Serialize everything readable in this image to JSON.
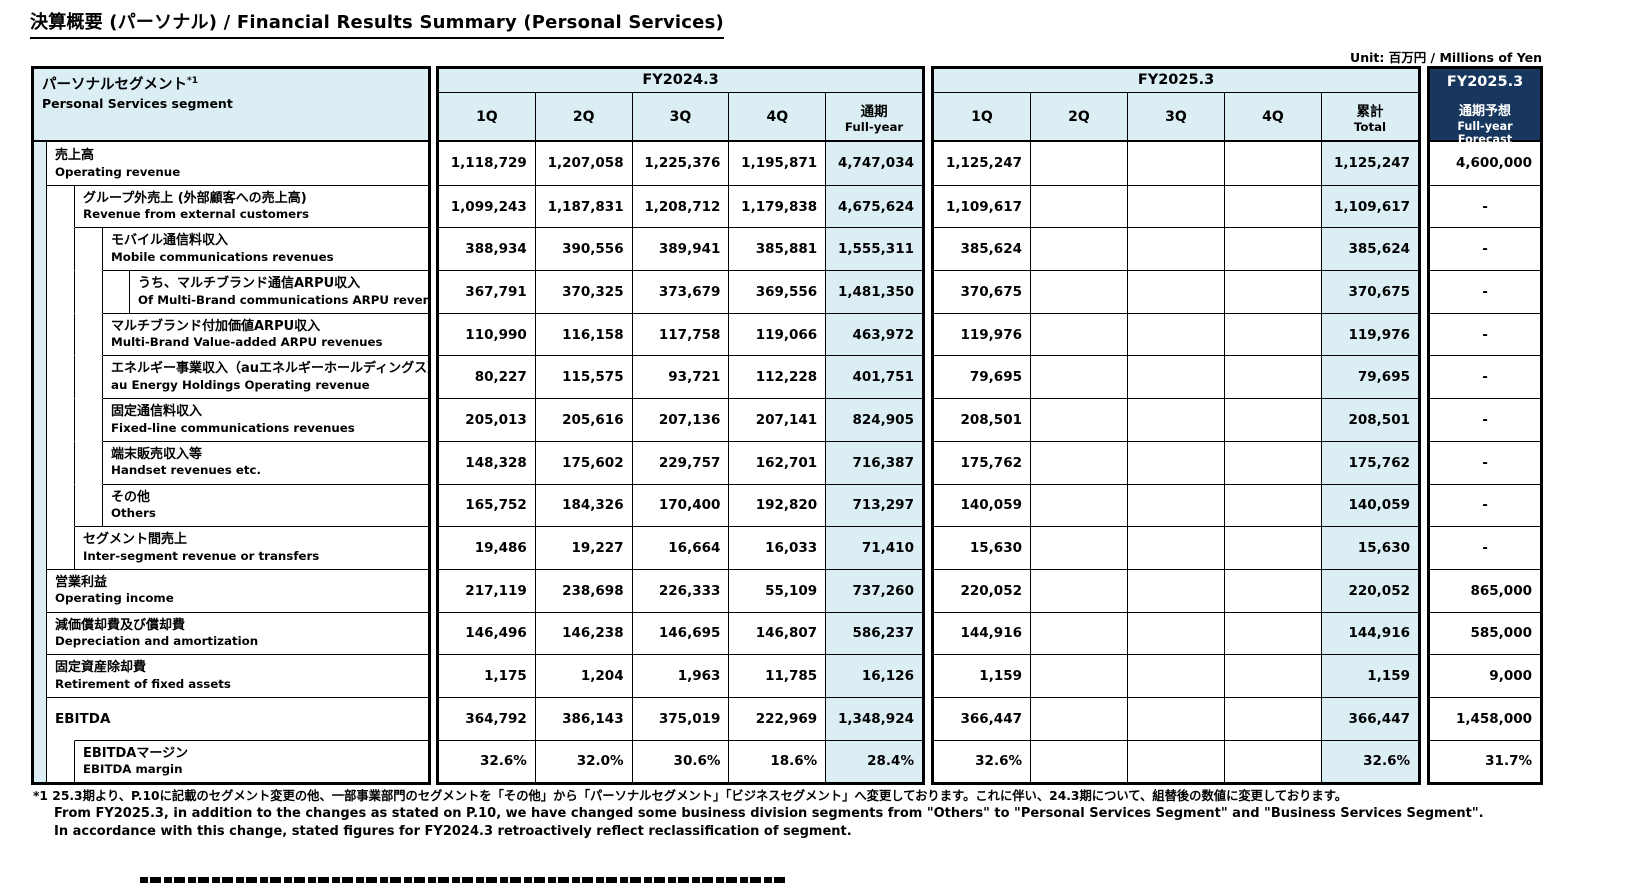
{
  "title": "決算概要 (パーソナル) / Financial Results Summary (Personal Services)",
  "unit_note": "Unit: 百万円 / Millions of Yen",
  "colors": {
    "header_blue": "#DAEEF3",
    "forecast_navy": "#17375E",
    "border": "#000000"
  },
  "segment": {
    "ja": "パーソナルセグメント",
    "sup": "*1",
    "en": "Personal Services segment"
  },
  "columns": {
    "fy2024": {
      "title": "FY2024.3",
      "q1": "1Q",
      "q2": "2Q",
      "q3": "3Q",
      "q4": "4Q",
      "total_ja": "通期",
      "total_en": "Full-year"
    },
    "fy2025": {
      "title": "FY2025.3",
      "q1": "1Q",
      "q2": "2Q",
      "q3": "3Q",
      "q4": "4Q",
      "total_ja": "累計",
      "total_en": "Total"
    },
    "forecast": {
      "title": "FY2025.3",
      "label_ja": "通期予想",
      "label_en": "Full-year Forecast"
    }
  },
  "rows": [
    {
      "ja": "売上高",
      "en": "Operating revenue",
      "indent": 0,
      "fy2024": [
        "1,118,729",
        "1,207,058",
        "1,225,376",
        "1,195,871",
        "4,747,034"
      ],
      "fy2025": [
        "1,125,247",
        "",
        "",
        "",
        "1,125,247"
      ],
      "forecast": "4,600,000"
    },
    {
      "ja": "グループ外売上 (外部顧客への売上高)",
      "en": "Revenue from external customers",
      "indent": 1,
      "fy2024": [
        "1,099,243",
        "1,187,831",
        "1,208,712",
        "1,179,838",
        "4,675,624"
      ],
      "fy2025": [
        "1,109,617",
        "",
        "",
        "",
        "1,109,617"
      ],
      "forecast": "-"
    },
    {
      "ja": "モバイル通信料収入",
      "en": "Mobile communications revenues",
      "indent": 2,
      "fy2024": [
        "388,934",
        "390,556",
        "389,941",
        "385,881",
        "1,555,311"
      ],
      "fy2025": [
        "385,624",
        "",
        "",
        "",
        "385,624"
      ],
      "forecast": "-"
    },
    {
      "ja": "うち、マルチブランド通信ARPU収入",
      "en": "Of Multi-Brand communications ARPU revenues",
      "indent": 3,
      "fy2024": [
        "367,791",
        "370,325",
        "373,679",
        "369,556",
        "1,481,350"
      ],
      "fy2025": [
        "370,675",
        "",
        "",
        "",
        "370,675"
      ],
      "forecast": "-"
    },
    {
      "ja": "マルチブランド付加価値ARPU収入",
      "en": "Multi-Brand Value-added ARPU revenues",
      "indent": 2,
      "fy2024": [
        "110,990",
        "116,158",
        "117,758",
        "119,066",
        "463,972"
      ],
      "fy2025": [
        "119,976",
        "",
        "",
        "",
        "119,976"
      ],
      "forecast": "-"
    },
    {
      "ja": "エネルギー事業収入（auエネルギーホールディングス）",
      "en": "au Energy Holdings Operating revenue",
      "indent": 2,
      "fy2024": [
        "80,227",
        "115,575",
        "93,721",
        "112,228",
        "401,751"
      ],
      "fy2025": [
        "79,695",
        "",
        "",
        "",
        "79,695"
      ],
      "forecast": "-"
    },
    {
      "ja": "固定通信料収入",
      "en": "Fixed-line communications revenues",
      "indent": 2,
      "fy2024": [
        "205,013",
        "205,616",
        "207,136",
        "207,141",
        "824,905"
      ],
      "fy2025": [
        "208,501",
        "",
        "",
        "",
        "208,501"
      ],
      "forecast": "-"
    },
    {
      "ja": "端末販売収入等",
      "en": "Handset revenues etc.",
      "indent": 2,
      "fy2024": [
        "148,328",
        "175,602",
        "229,757",
        "162,701",
        "716,387"
      ],
      "fy2025": [
        "175,762",
        "",
        "",
        "",
        "175,762"
      ],
      "forecast": "-"
    },
    {
      "ja": "その他",
      "en": "Others",
      "indent": 2,
      "fy2024": [
        "165,752",
        "184,326",
        "170,400",
        "192,820",
        "713,297"
      ],
      "fy2025": [
        "140,059",
        "",
        "",
        "",
        "140,059"
      ],
      "forecast": "-"
    },
    {
      "ja": "セグメント間売上",
      "en": "Inter-segment revenue or transfers",
      "indent": 1,
      "fy2024": [
        "19,486",
        "19,227",
        "16,664",
        "16,033",
        "71,410"
      ],
      "fy2025": [
        "15,630",
        "",
        "",
        "",
        "15,630"
      ],
      "forecast": "-"
    },
    {
      "ja": "営業利益",
      "en": "Operating income",
      "indent": 0,
      "fy2024": [
        "217,119",
        "238,698",
        "226,333",
        "55,109",
        "737,260"
      ],
      "fy2025": [
        "220,052",
        "",
        "",
        "",
        "220,052"
      ],
      "forecast": "865,000"
    },
    {
      "ja": "減価償却費及び償却費",
      "en": "Depreciation and amortization",
      "indent": 0,
      "fy2024": [
        "146,496",
        "146,238",
        "146,695",
        "146,807",
        "586,237"
      ],
      "fy2025": [
        "144,916",
        "",
        "",
        "",
        "144,916"
      ],
      "forecast": "585,000"
    },
    {
      "ja": "固定資産除却費",
      "en": "Retirement of fixed assets",
      "indent": 0,
      "fy2024": [
        "1,175",
        "1,204",
        "1,963",
        "11,785",
        "16,126"
      ],
      "fy2025": [
        "1,159",
        "",
        "",
        "",
        "1,159"
      ],
      "forecast": "9,000"
    },
    {
      "ja": "EBITDA",
      "en": "",
      "indent": 0,
      "fy2024": [
        "364,792",
        "386,143",
        "375,019",
        "222,969",
        "1,348,924"
      ],
      "fy2025": [
        "366,447",
        "",
        "",
        "",
        "366,447"
      ],
      "forecast": "1,458,000"
    },
    {
      "ja": "EBITDAマージン",
      "en": "EBITDA margin",
      "indent": 1,
      "fy2024": [
        "32.6%",
        "32.0%",
        "30.6%",
        "18.6%",
        "28.4%"
      ],
      "fy2025": [
        "32.6%",
        "",
        "",
        "",
        "32.6%"
      ],
      "forecast": "31.7%"
    }
  ],
  "footnote": {
    "line1": "*1 25.3期より、P.10に記載のセグメント変更の他、一部事業部門のセグメントを「その他」から「パーソナルセグメント」「ビジネスセグメント」へ変更しております。これに伴い、24.3期について、組替後の数値に変更しております。",
    "line2": "From FY2025.3, in addition to the changes as stated on P.10, we have changed some business division segments from \"Others\" to \"Personal Services Segment\" and \"Business Services Segment\".",
    "line3": "In accordance with this change, stated figures for FY2024.3 retroactively reflect reclassification of segment."
  }
}
